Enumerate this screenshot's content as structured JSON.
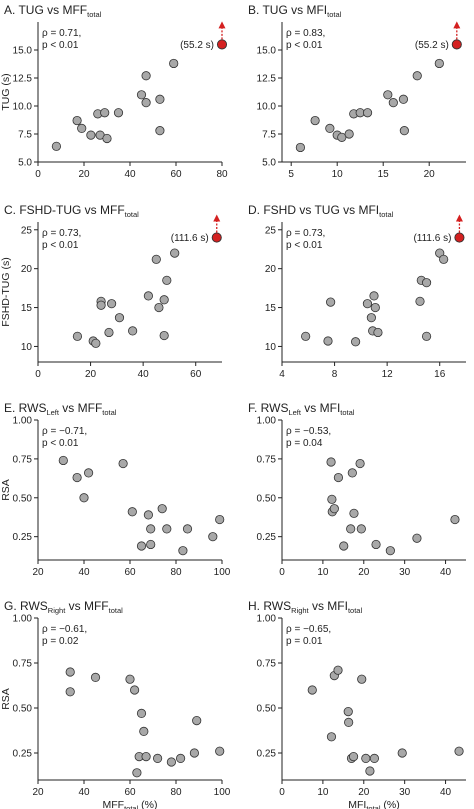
{
  "figure": {
    "panels": [
      "A",
      "B",
      "C",
      "D",
      "E",
      "F",
      "G",
      "H"
    ]
  },
  "chart_data": [
    {
      "panel": "A",
      "type": "scatter",
      "title": "A. TUG vs MFF",
      "title_sub": "total",
      "ylabel": "TUG (s)",
      "xlabel": "",
      "xlabel_sub": "",
      "xlabel_suffix": "",
      "xlim": [
        0,
        80
      ],
      "ylim": [
        5,
        17.5
      ],
      "xticks": [
        "0",
        "20",
        "40",
        "60",
        "80"
      ],
      "xtick_values": [
        0,
        20,
        40,
        60,
        80
      ],
      "yticks": [
        "5.0",
        "7.5",
        "10.0",
        "12.5",
        "15.0"
      ],
      "ytick_values": [
        5,
        7.5,
        10,
        12.5,
        15
      ],
      "stats": [
        "ρ = 0.71,",
        "p < 0.01"
      ],
      "points": [
        [
          8,
          6.4
        ],
        [
          17,
          8.7
        ],
        [
          19,
          8.0
        ],
        [
          23,
          7.4
        ],
        [
          26,
          9.3
        ],
        [
          27,
          7.4
        ],
        [
          29,
          9.4
        ],
        [
          30,
          7.1
        ],
        [
          35,
          9.4
        ],
        [
          45,
          11.0
        ],
        [
          47,
          12.7
        ],
        [
          47,
          10.3
        ],
        [
          53,
          10.6
        ],
        [
          53,
          7.8
        ],
        [
          59,
          13.8
        ]
      ],
      "outlier": {
        "point": [
          80,
          15.5
        ],
        "label": "(55.2 s)"
      }
    },
    {
      "panel": "B",
      "type": "scatter",
      "title": "B. TUG vs MFI",
      "title_sub": "total",
      "ylabel": "",
      "xlabel": "",
      "xlabel_sub": "",
      "xlabel_suffix": "",
      "xlim": [
        4,
        24
      ],
      "ylim": [
        5,
        17.5
      ],
      "xticks": [
        "5",
        "10",
        "15",
        "20"
      ],
      "xtick_values": [
        5,
        10,
        15,
        20
      ],
      "yticks": [
        "5.0",
        "7.5",
        "10.0",
        "12.5",
        "15.0"
      ],
      "ytick_values": [
        5,
        7.5,
        10,
        12.5,
        15
      ],
      "stats": [
        "ρ = 0.83,",
        "p < 0.01"
      ],
      "points": [
        [
          6,
          6.3
        ],
        [
          7.6,
          8.7
        ],
        [
          9.2,
          8.0
        ],
        [
          10,
          7.4
        ],
        [
          10.5,
          7.2
        ],
        [
          11.3,
          7.5
        ],
        [
          11.8,
          9.3
        ],
        [
          12.5,
          9.4
        ],
        [
          13.3,
          9.4
        ],
        [
          15.5,
          11.0
        ],
        [
          16.1,
          10.3
        ],
        [
          17.2,
          10.6
        ],
        [
          17.3,
          7.8
        ],
        [
          18.7,
          12.7
        ],
        [
          21.1,
          13.8
        ]
      ],
      "outlier": {
        "point": [
          23,
          15.5
        ],
        "label": "(55.2 s)"
      }
    },
    {
      "panel": "C",
      "type": "scatter",
      "title": "C. FSHD-TUG vs MFF",
      "title_sub": "total",
      "ylabel": "FSHD-TUG (s)",
      "xlabel": "",
      "xlabel_sub": "",
      "xlabel_suffix": "",
      "xlim": [
        0,
        70
      ],
      "ylim": [
        8,
        26
      ],
      "xticks": [
        "0",
        "20",
        "40",
        "60"
      ],
      "xtick_values": [
        0,
        20,
        40,
        60
      ],
      "yticks": [
        "10",
        "15",
        "20",
        "25"
      ],
      "ytick_values": [
        10,
        15,
        20,
        25
      ],
      "stats": [
        "ρ = 0.73,",
        "p < 0.01"
      ],
      "points": [
        [
          15,
          11.3
        ],
        [
          21,
          10.7
        ],
        [
          22,
          10.4
        ],
        [
          24,
          15.8
        ],
        [
          24,
          15.3
        ],
        [
          27,
          11.8
        ],
        [
          28,
          15.5
        ],
        [
          31,
          13.7
        ],
        [
          36,
          12.0
        ],
        [
          42,
          16.5
        ],
        [
          45,
          21.2
        ],
        [
          46,
          15.0
        ],
        [
          48,
          16.0
        ],
        [
          49,
          18.5
        ],
        [
          52,
          22.0
        ],
        [
          48,
          11.4
        ]
      ],
      "outlier": {
        "point": [
          68,
          24.0
        ],
        "label": "(111.6 s)"
      }
    },
    {
      "panel": "D",
      "type": "scatter",
      "title": "D. FSHD vs TUG vs MFI",
      "title_sub": "total",
      "ylabel": "",
      "xlabel": "",
      "xlabel_sub": "",
      "xlabel_suffix": "",
      "xlim": [
        4,
        18
      ],
      "ylim": [
        8,
        26
      ],
      "xticks": [
        "4",
        "8",
        "12",
        "16"
      ],
      "xtick_values": [
        4,
        8,
        12,
        16
      ],
      "yticks": [
        "10",
        "15",
        "20",
        "25"
      ],
      "ytick_values": [
        10,
        15,
        20,
        25
      ],
      "stats": [
        "ρ = 0.73,",
        "p < 0.01"
      ],
      "points": [
        [
          5.8,
          11.3
        ],
        [
          7.5,
          10.7
        ],
        [
          7.7,
          15.7
        ],
        [
          9.6,
          10.6
        ],
        [
          10.5,
          15.5
        ],
        [
          10.8,
          13.7
        ],
        [
          10.9,
          12.0
        ],
        [
          11.0,
          16.5
        ],
        [
          11.1,
          15.0
        ],
        [
          11.3,
          11.8
        ],
        [
          14.5,
          15.8
        ],
        [
          14.6,
          18.5
        ],
        [
          15.0,
          18.2
        ],
        [
          15.0,
          11.3
        ],
        [
          16.0,
          22.0
        ],
        [
          16.3,
          21.2
        ]
      ],
      "outlier": {
        "point": [
          17.5,
          24.0
        ],
        "label": "(111.6 s)"
      }
    },
    {
      "panel": "E",
      "type": "scatter",
      "title": "E. RWS",
      "title_sub": "Left",
      "title_mid": " vs MFF",
      "title_sub2": "total",
      "ylabel": "RSA",
      "xlabel": "",
      "xlabel_sub": "",
      "xlabel_suffix": "",
      "xlim": [
        20,
        100
      ],
      "ylim": [
        0.1,
        1.0
      ],
      "xticks": [
        "20",
        "40",
        "60",
        "80",
        "100"
      ],
      "xtick_values": [
        20,
        40,
        60,
        80,
        100
      ],
      "yticks": [
        "0.25",
        "0.50",
        "0.75",
        "1.00"
      ],
      "ytick_values": [
        0.25,
        0.5,
        0.75,
        1.0
      ],
      "stats": [
        "ρ = −0.71,",
        "p < 0.01"
      ],
      "points": [
        [
          31,
          0.74
        ],
        [
          37,
          0.63
        ],
        [
          40,
          0.5
        ],
        [
          42,
          0.66
        ],
        [
          57,
          0.72
        ],
        [
          61,
          0.41
        ],
        [
          65,
          0.19
        ],
        [
          68,
          0.39
        ],
        [
          69,
          0.3
        ],
        [
          69,
          0.2
        ],
        [
          74,
          0.43
        ],
        [
          76,
          0.3
        ],
        [
          83,
          0.16
        ],
        [
          85,
          0.3
        ],
        [
          96,
          0.25
        ],
        [
          99,
          0.36
        ]
      ]
    },
    {
      "panel": "F",
      "type": "scatter",
      "title": "F. RWS",
      "title_sub": "Left",
      "title_mid": " vs MFI",
      "title_sub2": "total",
      "ylabel": "",
      "xlabel": "",
      "xlabel_sub": "",
      "xlabel_suffix": "",
      "xlim": [
        0,
        45
      ],
      "ylim": [
        0.1,
        1.0
      ],
      "xticks": [
        "0",
        "10",
        "20",
        "30",
        "40"
      ],
      "xtick_values": [
        0,
        10,
        20,
        30,
        40
      ],
      "yticks": [
        "0.25",
        "0.50",
        "0.75",
        "1.00"
      ],
      "ytick_values": [
        0.25,
        0.5,
        0.75,
        1.0
      ],
      "stats": [
        "ρ = −0.53,",
        "p = 0.04"
      ],
      "points": [
        [
          12.0,
          0.73
        ],
        [
          12.2,
          0.49
        ],
        [
          12.3,
          0.41
        ],
        [
          12.8,
          0.43
        ],
        [
          13.8,
          0.63
        ],
        [
          15.1,
          0.19
        ],
        [
          16.8,
          0.3
        ],
        [
          17.2,
          0.66
        ],
        [
          17.6,
          0.4
        ],
        [
          19.1,
          0.72
        ],
        [
          19.4,
          0.3
        ],
        [
          23.0,
          0.2
        ],
        [
          26.5,
          0.16
        ],
        [
          33.0,
          0.24
        ],
        [
          42.3,
          0.36
        ]
      ]
    },
    {
      "panel": "G",
      "type": "scatter",
      "title": "G. RWS",
      "title_sub": "Right",
      "title_mid": " vs MFF",
      "title_sub2": "total",
      "ylabel": "RSA",
      "xlabel": "MFF",
      "xlabel_sub": "total",
      "xlabel_suffix": " (%)",
      "xlim": [
        20,
        100
      ],
      "ylim": [
        0.1,
        1.0
      ],
      "xticks": [
        "20",
        "40",
        "60",
        "80",
        "100"
      ],
      "xtick_values": [
        20,
        40,
        60,
        80,
        100
      ],
      "yticks": [
        "0.25",
        "0.50",
        "0.75",
        "1.00"
      ],
      "ytick_values": [
        0.25,
        0.5,
        0.75,
        1.0
      ],
      "stats": [
        "ρ = −0.61,",
        "p = 0.02"
      ],
      "points": [
        [
          34,
          0.7
        ],
        [
          34,
          0.59
        ],
        [
          45,
          0.67
        ],
        [
          60,
          0.66
        ],
        [
          62,
          0.6
        ],
        [
          65,
          0.47
        ],
        [
          64,
          0.23
        ],
        [
          66,
          0.37
        ],
        [
          67,
          0.23
        ],
        [
          63,
          0.14
        ],
        [
          72,
          0.22
        ],
        [
          78,
          0.2
        ],
        [
          82,
          0.22
        ],
        [
          89,
          0.43
        ],
        [
          88,
          0.25
        ],
        [
          99,
          0.26
        ]
      ]
    },
    {
      "panel": "H",
      "type": "scatter",
      "title": "H. RWS",
      "title_sub": "Right",
      "title_mid": " vs MFI",
      "title_sub2": "total",
      "ylabel": "",
      "xlabel": "MFI",
      "xlabel_sub": "total",
      "xlabel_suffix": " (%)",
      "xlim": [
        0,
        45
      ],
      "ylim": [
        0.1,
        1.0
      ],
      "xticks": [
        "0",
        "10",
        "20",
        "30",
        "40"
      ],
      "xtick_values": [
        0,
        10,
        20,
        30,
        40
      ],
      "yticks": [
        "0.25",
        "0.50",
        "0.75",
        "1.00"
      ],
      "ytick_values": [
        0.25,
        0.5,
        0.75,
        1.0
      ],
      "stats": [
        "ρ = −0.65,",
        "p = 0.01"
      ],
      "points": [
        [
          7.4,
          0.6
        ],
        [
          12.1,
          0.34
        ],
        [
          12.8,
          0.68
        ],
        [
          13.7,
          0.71
        ],
        [
          16.2,
          0.48
        ],
        [
          16.3,
          0.42
        ],
        [
          17.0,
          0.22
        ],
        [
          17.5,
          0.23
        ],
        [
          19.5,
          0.66
        ],
        [
          20.5,
          0.22
        ],
        [
          21.5,
          0.15
        ],
        [
          22.6,
          0.22
        ],
        [
          29.4,
          0.25
        ],
        [
          43.3,
          0.26
        ]
      ]
    }
  ]
}
